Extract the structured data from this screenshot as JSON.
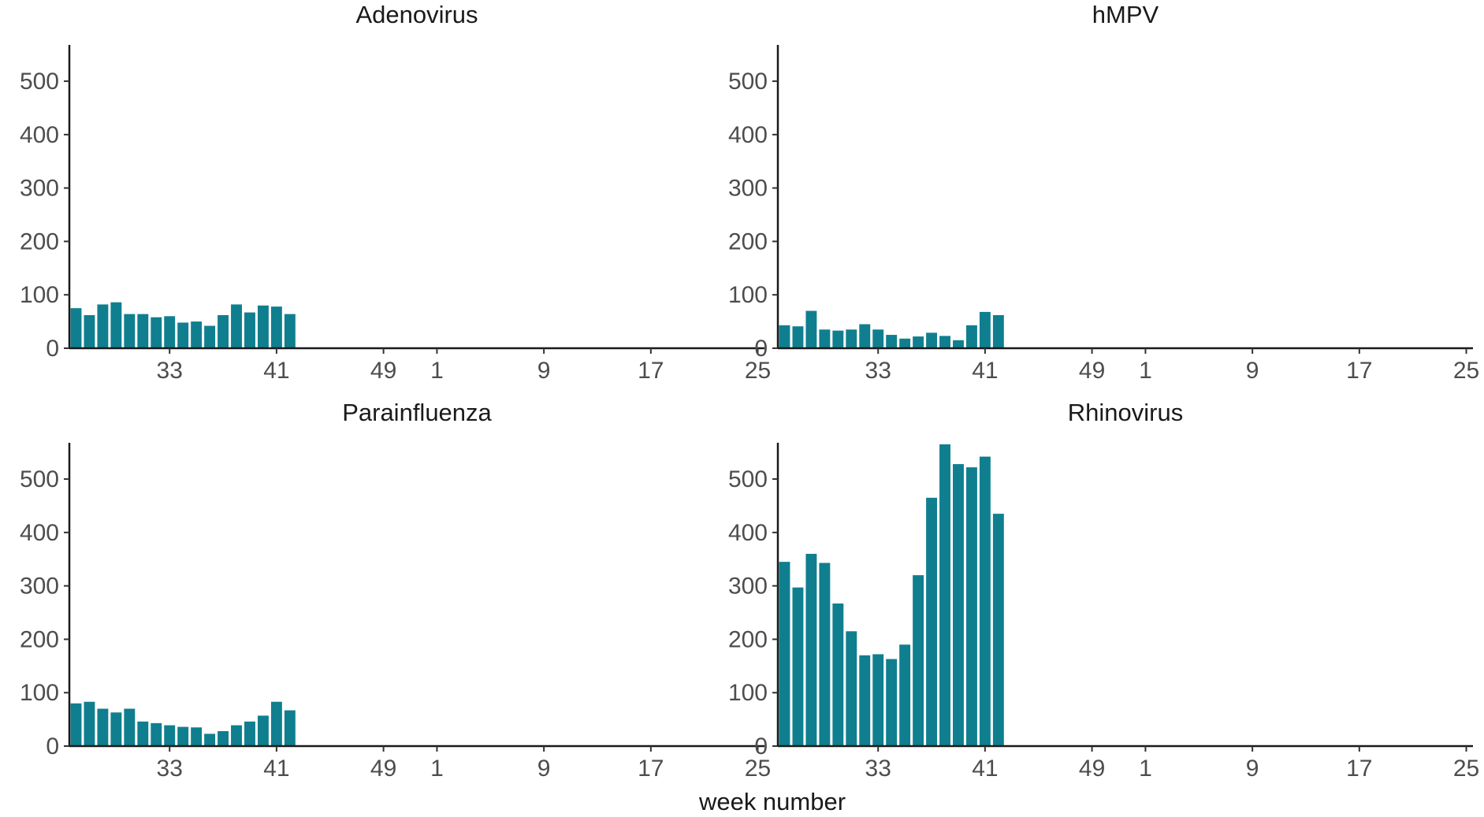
{
  "chart_data": {
    "type": "bar",
    "layout": "facet-grid 2x2, shared axes",
    "xlabel": "week number",
    "ylabel": "",
    "ylim": [
      0,
      565
    ],
    "y_ticks": [
      0,
      100,
      200,
      300,
      400,
      500
    ],
    "x_weeks": [
      26,
      27,
      28,
      29,
      30,
      31,
      32,
      33,
      34,
      35,
      36,
      37,
      38,
      39,
      40,
      41,
      42,
      43,
      44,
      45,
      46,
      47,
      48,
      49,
      50,
      51,
      52,
      1,
      2,
      3,
      4,
      5,
      6,
      7,
      8,
      9,
      10,
      11,
      12,
      13,
      14,
      15,
      16,
      17,
      18,
      19,
      20,
      21,
      22,
      23,
      24,
      25
    ],
    "x_tick_labels": [
      "33",
      "41",
      "49",
      "1",
      "9",
      "17",
      "25"
    ],
    "x_tick_weeks": [
      33,
      41,
      49,
      1,
      9,
      17,
      25
    ],
    "bar_color": "#0F7F8F",
    "grid": false,
    "legend": "none",
    "panels": [
      {
        "title": "Adenovirus",
        "weeks": [
          26,
          27,
          28,
          29,
          30,
          31,
          32,
          33,
          34,
          35,
          36,
          37,
          38,
          39,
          40,
          41,
          42,
          43
        ],
        "values": [
          75,
          62,
          82,
          86,
          64,
          64,
          58,
          60,
          48,
          50,
          42,
          62,
          82,
          67,
          80,
          78,
          64,
          0
        ]
      },
      {
        "title": "hMPV",
        "weeks": [
          26,
          27,
          28,
          29,
          30,
          31,
          32,
          33,
          34,
          35,
          36,
          37,
          38,
          39,
          40,
          41,
          42,
          43
        ],
        "values": [
          43,
          41,
          70,
          35,
          33,
          35,
          45,
          35,
          25,
          18,
          22,
          29,
          23,
          15,
          43,
          68,
          62,
          0
        ]
      },
      {
        "title": "Parainfluenza",
        "weeks": [
          26,
          27,
          28,
          29,
          30,
          31,
          32,
          33,
          34,
          35,
          36,
          37,
          38,
          39,
          40,
          41,
          42,
          43
        ],
        "values": [
          80,
          83,
          70,
          63,
          70,
          46,
          43,
          39,
          36,
          35,
          23,
          28,
          39,
          46,
          57,
          83,
          67,
          0
        ]
      },
      {
        "title": "Rhinovirus",
        "weeks": [
          26,
          27,
          28,
          29,
          30,
          31,
          32,
          33,
          34,
          35,
          36,
          37,
          38,
          39,
          40,
          41,
          42,
          43
        ],
        "values": [
          345,
          297,
          360,
          343,
          267,
          215,
          170,
          172,
          163,
          190,
          320,
          465,
          565,
          528,
          522,
          542,
          435,
          0
        ]
      }
    ]
  }
}
